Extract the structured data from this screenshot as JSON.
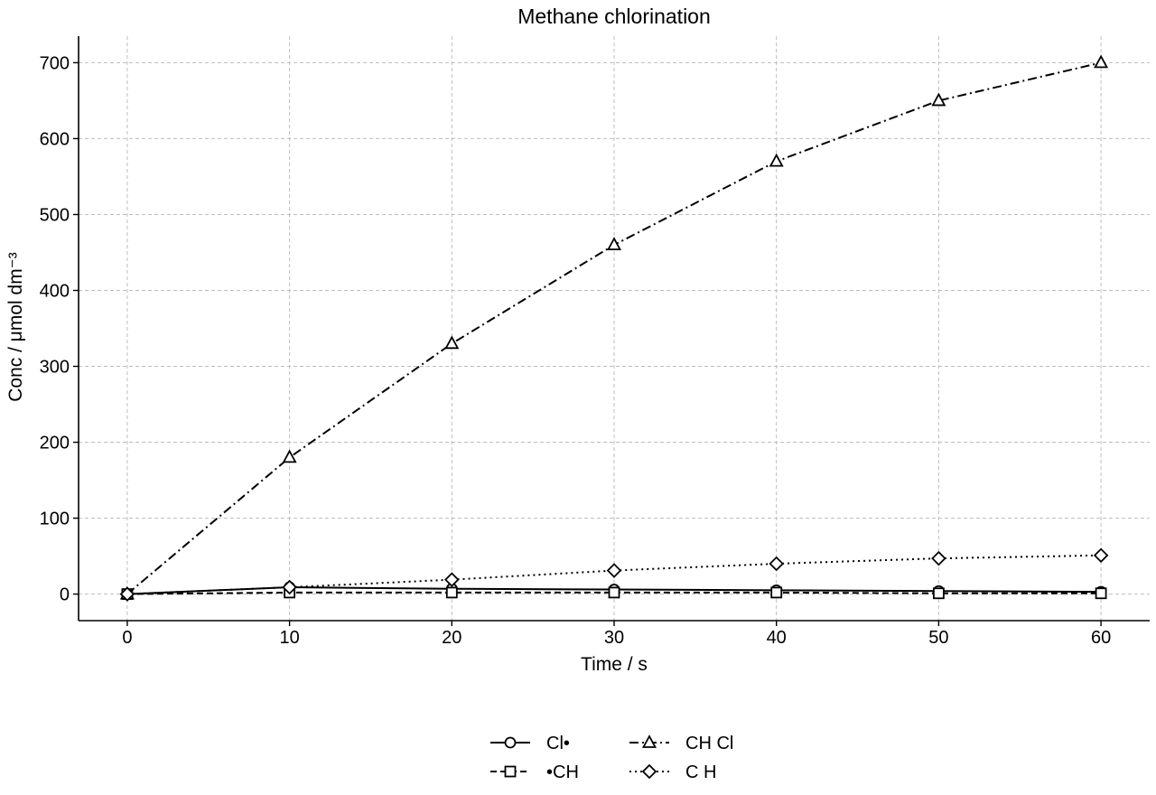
{
  "chart_data": {
    "type": "line",
    "title": "Methane chlorination",
    "xlabel": "Time / s",
    "ylabel": "Conc / μmol dm⁻³",
    "xlim": [
      -3,
      63
    ],
    "ylim": [
      -35,
      735
    ],
    "x_ticks": [
      0,
      10,
      20,
      30,
      40,
      50,
      60
    ],
    "y_ticks": [
      0,
      100,
      200,
      300,
      400,
      500,
      600,
      700
    ],
    "grid": true,
    "legend_position": "bottom-center",
    "x": [
      0,
      10,
      20,
      30,
      40,
      50,
      60
    ],
    "series": [
      {
        "name": "Cl•",
        "values": [
          0,
          9,
          7,
          6,
          5,
          4,
          3
        ],
        "marker": "circle",
        "line_style": "solid",
        "color": "#000000"
      },
      {
        "name": "•CH",
        "values": [
          0,
          2,
          2,
          2,
          2,
          1,
          1
        ],
        "marker": "square",
        "line_style": "dashed",
        "color": "#000000"
      },
      {
        "name": "CH Cl",
        "values": [
          0,
          180,
          330,
          460,
          570,
          650,
          700
        ],
        "marker": "triangle",
        "line_style": "dashdot",
        "color": "#000000"
      },
      {
        "name": "C H",
        "values": [
          0,
          9,
          19,
          31,
          40,
          47,
          51
        ],
        "marker": "diamond",
        "line_style": "dotted",
        "color": "#000000"
      }
    ]
  }
}
